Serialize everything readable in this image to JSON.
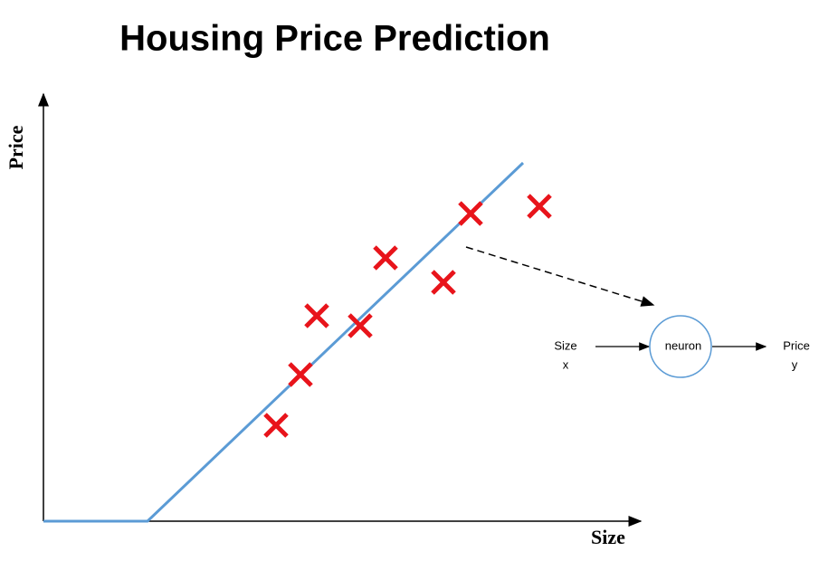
{
  "title": "Housing Price Prediction",
  "axes": {
    "y_label": "Price",
    "x_label": "Size"
  },
  "neuron": {
    "input_label": "Size",
    "input_symbol": "x",
    "node_label": "neuron",
    "output_label": "Price",
    "output_symbol": "y"
  }
}
